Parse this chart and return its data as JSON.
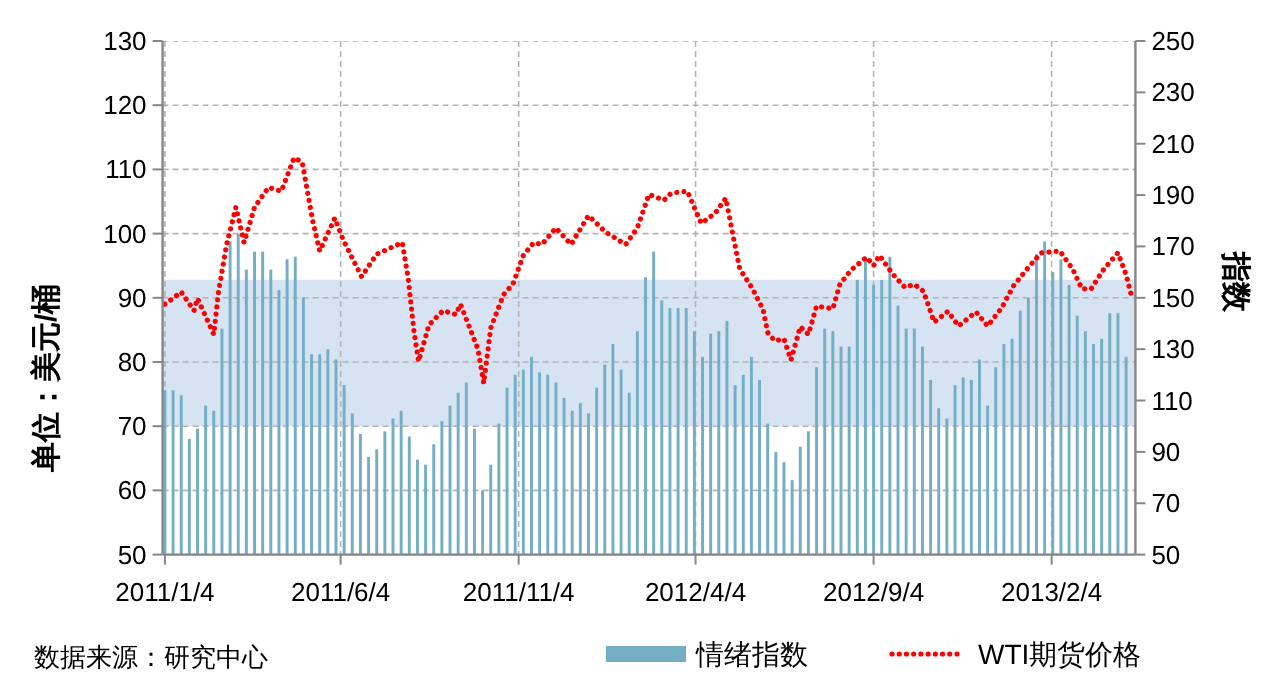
{
  "chart_data": {
    "type": "bar",
    "ylabel": "单位：美元/桶",
    "y2label": "指数",
    "annotations": [
      "数据来源：研究中心"
    ],
    "xlim": [
      "2011-01-02",
      "2013-04-17"
    ],
    "xticks": [
      {
        "value": "2011-01-04",
        "label": "2011/1/4"
      },
      {
        "value": "2011-06-04",
        "label": "2011/6/4"
      },
      {
        "value": "2011-11-04",
        "label": "2011/11/4"
      },
      {
        "value": "2012-04-04",
        "label": "2012/4/4"
      },
      {
        "value": "2012-09-04",
        "label": "2012/9/4"
      },
      {
        "value": "2013-02-04",
        "label": "2013/2/4"
      }
    ],
    "ylim": [
      50,
      130
    ],
    "yticks": [
      50,
      60,
      70,
      80,
      90,
      100,
      110,
      120,
      130
    ],
    "y2lim": [
      50,
      250
    ],
    "y2ticks": [
      50,
      70,
      90,
      110,
      130,
      150,
      170,
      190,
      210,
      230,
      250
    ],
    "grid": true,
    "legend": "bottom",
    "bands": [
      {
        "axis": "y2",
        "from": 100,
        "to": 157,
        "color": "#d6e3f3"
      }
    ],
    "series": [
      {
        "name": "情绪指数",
        "axis": "y2",
        "color": "#74aec4",
        "x": [
          "2011-01-04",
          "2011-01-11",
          "2011-01-18",
          "2011-01-25",
          "2011-02-01",
          "2011-02-08",
          "2011-02-15",
          "2011-02-22",
          "2011-03-01",
          "2011-03-08",
          "2011-03-15",
          "2011-03-22",
          "2011-03-29",
          "2011-04-05",
          "2011-04-12",
          "2011-04-19",
          "2011-04-26",
          "2011-05-03",
          "2011-05-10",
          "2011-05-17",
          "2011-05-24",
          "2011-05-31",
          "2011-06-07",
          "2011-06-14",
          "2011-06-21",
          "2011-06-28",
          "2011-07-05",
          "2011-07-12",
          "2011-07-19",
          "2011-07-26",
          "2011-08-02",
          "2011-08-09",
          "2011-08-16",
          "2011-08-23",
          "2011-08-30",
          "2011-09-06",
          "2011-09-13",
          "2011-09-20",
          "2011-09-27",
          "2011-10-04",
          "2011-10-11",
          "2011-10-18",
          "2011-10-25",
          "2011-11-01",
          "2011-11-08",
          "2011-11-15",
          "2011-11-22",
          "2011-11-29",
          "2011-12-06",
          "2011-12-13",
          "2011-12-20",
          "2011-12-27",
          "2012-01-03",
          "2012-01-10",
          "2012-01-17",
          "2012-01-24",
          "2012-01-31",
          "2012-02-07",
          "2012-02-14",
          "2012-02-21",
          "2012-02-28",
          "2012-03-06",
          "2012-03-13",
          "2012-03-20",
          "2012-03-27",
          "2012-04-03",
          "2012-04-10",
          "2012-04-17",
          "2012-04-24",
          "2012-05-01",
          "2012-05-08",
          "2012-05-15",
          "2012-05-22",
          "2012-05-29",
          "2012-06-05",
          "2012-06-12",
          "2012-06-19",
          "2012-06-26",
          "2012-07-03",
          "2012-07-10",
          "2012-07-17",
          "2012-07-24",
          "2012-07-31",
          "2012-08-07",
          "2012-08-14",
          "2012-08-21",
          "2012-08-28",
          "2012-09-04",
          "2012-09-11",
          "2012-09-18",
          "2012-09-25",
          "2012-10-02",
          "2012-10-09",
          "2012-10-16",
          "2012-10-23",
          "2012-10-30",
          "2012-11-06",
          "2012-11-13",
          "2012-11-20",
          "2012-11-27",
          "2012-12-04",
          "2012-12-11",
          "2012-12-18",
          "2012-12-25",
          "2013-01-01",
          "2013-01-08",
          "2013-01-15",
          "2013-01-22",
          "2013-01-29",
          "2013-02-05",
          "2013-02-12",
          "2013-02-19",
          "2013-02-26",
          "2013-03-05",
          "2013-03-12",
          "2013-03-19",
          "2013-03-26",
          "2013-04-02",
          "2013-04-09"
        ],
        "values": [
          114,
          114,
          112,
          95,
          99,
          108,
          106,
          138,
          172,
          175,
          161,
          168,
          168,
          161,
          153,
          165,
          166,
          150,
          128,
          128,
          130,
          126,
          116,
          105,
          97,
          88,
          91,
          98,
          103,
          106,
          96,
          87,
          85,
          93,
          102,
          108,
          113,
          117,
          99,
          75,
          85,
          101,
          115,
          120,
          122,
          127,
          121,
          120,
          117,
          111,
          106,
          109,
          105,
          115,
          124,
          132,
          122,
          113,
          137,
          158,
          168,
          149,
          146,
          146,
          146,
          137,
          127,
          136,
          137,
          141,
          116,
          120,
          127,
          118,
          101,
          90,
          86,
          79,
          92,
          98,
          123,
          138,
          137,
          131,
          131,
          157,
          166,
          155,
          157,
          166,
          147,
          138,
          138,
          131,
          118,
          107,
          103,
          116,
          119,
          118,
          126,
          108,
          123,
          132,
          134,
          145,
          150,
          167,
          172,
          160,
          165,
          155,
          143,
          137,
          132,
          134,
          144,
          144,
          127
        ]
      },
      {
        "name": "WTI期货价格",
        "type": "line",
        "color": "#ff0000",
        "line_style": "dotted",
        "x": [
          "2011-01-04",
          "2011-01-18",
          "2011-01-29",
          "2011-02-01",
          "2011-02-15",
          "2011-02-19",
          "2011-02-26",
          "2011-03-06",
          "2011-03-13",
          "2011-03-22",
          "2011-04-03",
          "2011-04-14",
          "2011-04-25",
          "2011-05-02",
          "2011-05-11",
          "2011-05-17",
          "2011-05-30",
          "2011-06-06",
          "2011-06-22",
          "2011-07-05",
          "2011-07-27",
          "2011-08-01",
          "2011-08-06",
          "2011-08-10",
          "2011-08-19",
          "2011-08-31",
          "2011-09-11",
          "2011-09-15",
          "2011-09-30",
          "2011-10-05",
          "2011-10-11",
          "2011-10-22",
          "2011-10-30",
          "2011-11-08",
          "2011-11-17",
          "2011-11-24",
          "2011-12-06",
          "2011-12-19",
          "2012-01-03",
          "2012-01-18",
          "2012-02-04",
          "2012-02-14",
          "2012-02-24",
          "2012-03-02",
          "2012-03-08",
          "2012-03-14",
          "2012-03-28",
          "2012-04-05",
          "2012-04-09",
          "2012-04-21",
          "2012-04-30",
          "2012-05-06",
          "2012-05-12",
          "2012-05-23",
          "2012-06-01",
          "2012-06-05",
          "2012-06-11",
          "2012-06-19",
          "2012-06-25",
          "2012-07-03",
          "2012-07-10",
          "2012-07-17",
          "2012-07-31",
          "2012-08-06",
          "2012-08-16",
          "2012-08-29",
          "2012-09-04",
          "2012-09-09",
          "2012-09-20",
          "2012-10-01",
          "2012-10-09",
          "2012-10-17",
          "2012-10-26",
          "2012-11-07",
          "2012-11-16",
          "2012-12-01",
          "2012-12-11",
          "2012-12-23",
          "2013-01-02",
          "2013-01-14",
          "2013-01-26",
          "2013-02-11",
          "2013-02-22",
          "2013-03-02",
          "2013-03-10",
          "2013-03-21",
          "2013-04-02",
          "2013-04-09",
          "2013-04-14"
        ],
        "values": [
          89.0,
          90.9,
          88.0,
          89.9,
          84.3,
          90.9,
          98.3,
          104.1,
          98.6,
          104.1,
          107.2,
          106.6,
          111.8,
          111.1,
          102.0,
          97.3,
          102.4,
          99.1,
          93.3,
          96.8,
          98.6,
          93.1,
          84.8,
          80.1,
          85.8,
          88.0,
          87.4,
          89.0,
          82.0,
          76.7,
          85.3,
          90.5,
          92.1,
          96.6,
          98.6,
          98.3,
          100.9,
          98.3,
          102.8,
          100.2,
          98.3,
          100.9,
          106.1,
          105.6,
          105.2,
          106.3,
          106.6,
          103.2,
          101.6,
          103.2,
          105.5,
          99.9,
          94.5,
          91.4,
          88.2,
          84.6,
          83.3,
          83.6,
          80.3,
          85.5,
          84.3,
          88.7,
          88.3,
          92.1,
          94.4,
          96.3,
          95.0,
          96.6,
          93.8,
          91.6,
          92.1,
          91.0,
          86.2,
          87.9,
          85.6,
          87.8,
          85.6,
          88.4,
          91.8,
          94.5,
          97.0,
          97.3,
          94.5,
          91.4,
          91.4,
          94.5,
          97.0,
          93.6,
          90.0
        ]
      }
    ]
  }
}
